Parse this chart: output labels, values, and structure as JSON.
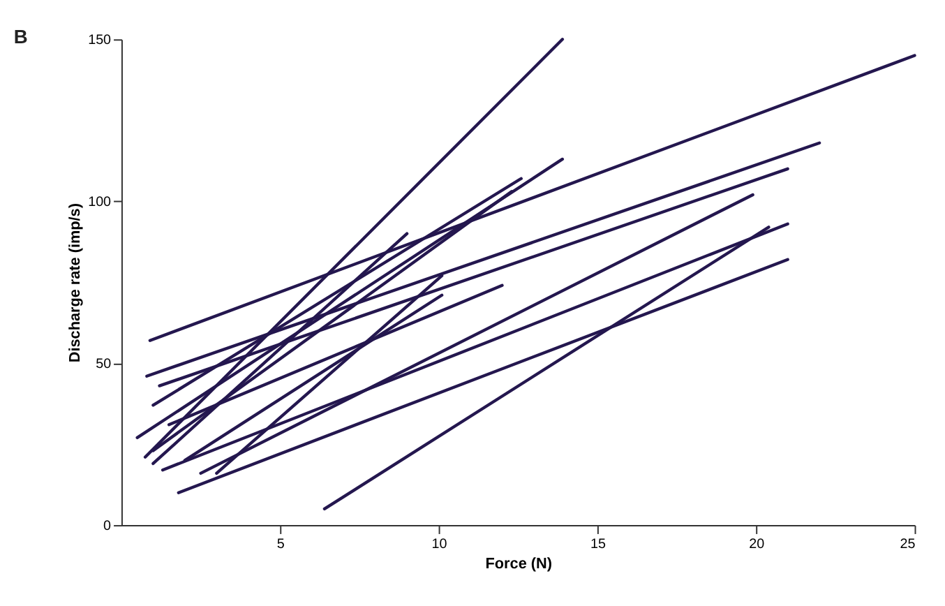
{
  "chart_data": {
    "type": "line",
    "xlabel": "Force (N)",
    "ylabel": "Discharge rate (imp/s)",
    "annotations": [
      "B"
    ],
    "xlim": [
      0,
      25
    ],
    "ylim": [
      0,
      150
    ],
    "xticks": [
      5,
      10,
      15,
      20,
      25
    ],
    "yticks": [
      0,
      50,
      100,
      150
    ],
    "grid": false,
    "legend": false,
    "marker": "none",
    "line_style": "solid",
    "series": [
      {
        "color": "#24174f",
        "x": [
          0.9,
          25
        ],
        "values": [
          57,
          145
        ]
      },
      {
        "color": "#24174f",
        "x": [
          6.4,
          20.4
        ],
        "values": [
          5,
          92
        ]
      },
      {
        "color": "#24174f",
        "x": [
          0.8,
          22
        ],
        "values": [
          46,
          118
        ]
      },
      {
        "color": "#24174f",
        "x": [
          1.2,
          21
        ],
        "values": [
          43,
          110
        ]
      },
      {
        "color": "#24174f",
        "x": [
          0.75,
          13.9
        ],
        "values": [
          21,
          150
        ]
      },
      {
        "color": "#24174f",
        "x": [
          1,
          12.6
        ],
        "values": [
          37,
          107
        ]
      },
      {
        "color": "#24174f",
        "x": [
          1.8,
          21
        ],
        "values": [
          10,
          82
        ]
      },
      {
        "color": "#24174f",
        "x": [
          1.3,
          21
        ],
        "values": [
          17,
          93
        ]
      },
      {
        "color": "#24174f",
        "x": [
          2.5,
          19.9
        ],
        "values": [
          16,
          102
        ]
      },
      {
        "color": "#24174f",
        "x": [
          0.5,
          13.9
        ],
        "values": [
          27,
          113
        ]
      },
      {
        "color": "#24174f",
        "x": [
          1,
          12.3
        ],
        "values": [
          23,
          103
        ]
      },
      {
        "color": "#24174f",
        "x": [
          1,
          9
        ],
        "values": [
          19,
          90
        ]
      },
      {
        "color": "#24174f",
        "x": [
          3,
          10.1
        ],
        "values": [
          16,
          77
        ]
      },
      {
        "color": "#24174f",
        "x": [
          2,
          10.1
        ],
        "values": [
          20,
          71
        ]
      },
      {
        "color": "#24174f",
        "x": [
          1.5,
          12
        ],
        "values": [
          31,
          74
        ]
      }
    ]
  }
}
